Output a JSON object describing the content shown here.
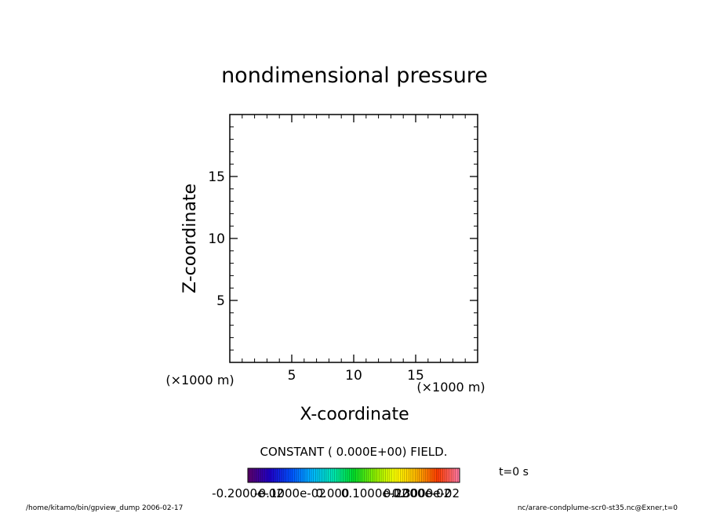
{
  "chart_data": {
    "type": "heatmap",
    "title": "nondimensional pressure",
    "xlabel": "X-coordinate",
    "ylabel": "Z-coordinate",
    "x_unit": "(×1000 m)",
    "y_unit": "(×1000 m)",
    "xlim": [
      0,
      20
    ],
    "ylim": [
      0,
      20
    ],
    "x_ticks": [
      5,
      10,
      15
    ],
    "y_ticks": [
      5,
      10,
      15
    ],
    "x_tick_labels": [
      "5",
      "10",
      "15"
    ],
    "y_tick_labels": [
      "5",
      "10",
      "15"
    ],
    "field_note": "CONSTANT ( 0.000E+00) FIELD.",
    "colorbar": {
      "labels": [
        "-0.2000e-02",
        "-0.1000e-02",
        "0.000",
        "0.1000e-02",
        "0.2000e-02",
        "0.3000e-02"
      ],
      "colors": [
        "#5a006e",
        "#1e00c8",
        "#0050ff",
        "#00b4ff",
        "#00e6b4",
        "#00dc28",
        "#8cf000",
        "#ffff00",
        "#ffb400",
        "#ff3c00",
        "#ff78a0"
      ]
    },
    "time_label": "t=0 s",
    "footer_left": "/home/kitamo/bin/gpview_dump  2006-02-17",
    "footer_right": "nc/arare-condplume-scr0-st35.nc@Exner,t=0"
  }
}
